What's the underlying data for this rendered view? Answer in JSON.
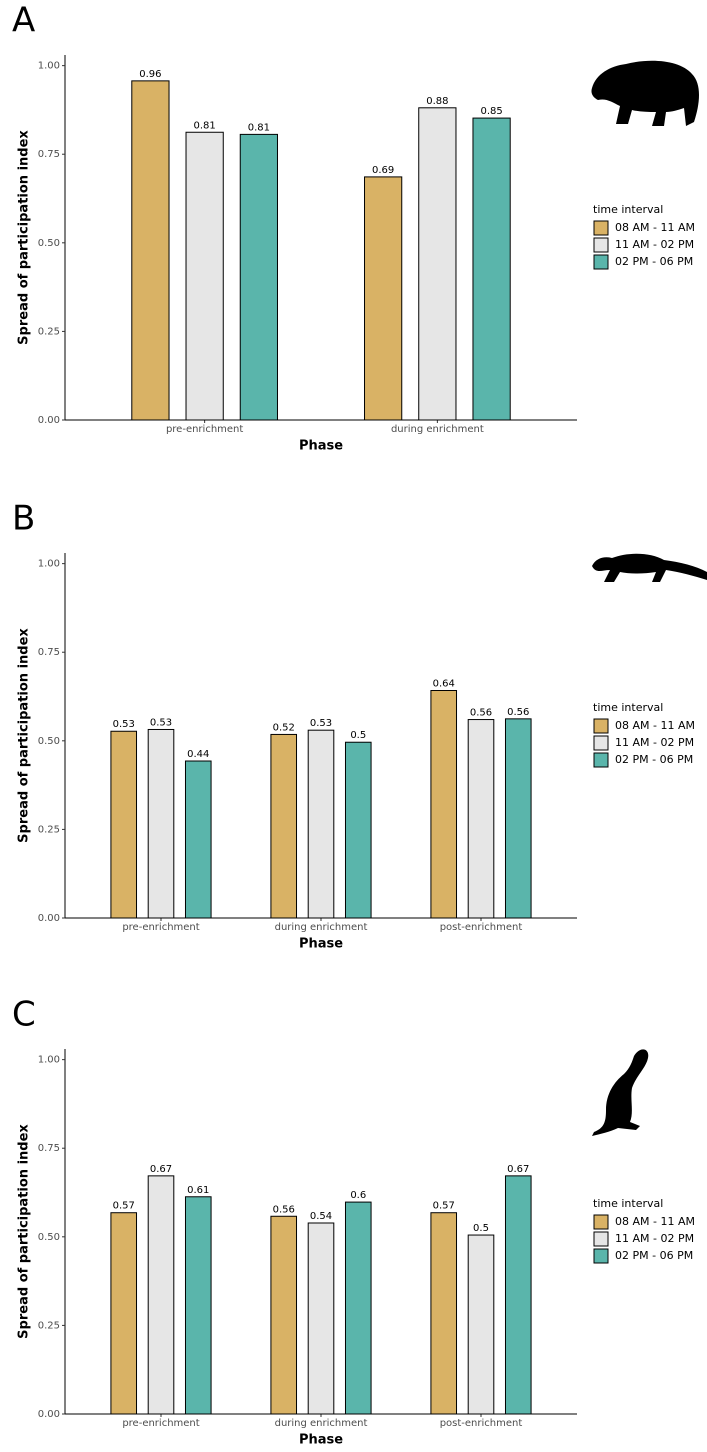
{
  "chart_data": [
    {
      "type": "bar",
      "panel": "A",
      "xlabel": "Phase",
      "ylabel": "Spread of participation index",
      "legend_title": "time interval",
      "categories": [
        "pre-enrichment",
        "during enrichment"
      ],
      "series": [
        {
          "name": "08 AM - 11 AM",
          "color": "#d9b265",
          "values": [
            0.957,
            0.686
          ],
          "value_labels": [
            "0.96",
            "0.69"
          ]
        },
        {
          "name": "11 AM - 02 PM",
          "color": "#e6e6e6",
          "values": [
            0.812,
            0.881
          ],
          "value_labels": [
            "0.81",
            "0.88"
          ]
        },
        {
          "name": "02 PM - 06 PM",
          "color": "#5ab5ab",
          "values": [
            0.806,
            0.852
          ],
          "value_labels": [
            "0.81",
            "0.85"
          ]
        }
      ],
      "ylim": [
        0,
        1.03
      ],
      "yticks": [
        {
          "value": 0,
          "label": "0.00"
        },
        {
          "value": 0.25,
          "label": "0.25"
        },
        {
          "value": 0.5,
          "label": "0.50"
        },
        {
          "value": 0.75,
          "label": "0.75"
        },
        {
          "value": 1,
          "label": "1.00"
        }
      ]
    },
    {
      "type": "bar",
      "panel": "B",
      "xlabel": "Phase",
      "ylabel": "Spread of participation index",
      "legend_title": "time interval",
      "categories": [
        "pre-enrichment",
        "during enrichment",
        "post-enrichment"
      ],
      "series": [
        {
          "name": "08 AM - 11 AM",
          "color": "#d9b265",
          "values": [
            0.527,
            0.518,
            0.642
          ],
          "value_labels": [
            "0.53",
            "0.52",
            "0.64"
          ]
        },
        {
          "name": "11 AM - 02 PM",
          "color": "#e6e6e6",
          "values": [
            0.532,
            0.53,
            0.56
          ],
          "value_labels": [
            "0.53",
            "0.53",
            "0.56"
          ]
        },
        {
          "name": "02 PM - 06 PM",
          "color": "#5ab5ab",
          "values": [
            0.443,
            0.496,
            0.562
          ],
          "value_labels": [
            "0.44",
            "0.5",
            "0.56"
          ]
        }
      ],
      "ylim": [
        0,
        1.03
      ],
      "yticks": [
        {
          "value": 0,
          "label": "0.00"
        },
        {
          "value": 0.25,
          "label": "0.25"
        },
        {
          "value": 0.5,
          "label": "0.50"
        },
        {
          "value": 0.75,
          "label": "0.75"
        },
        {
          "value": 1,
          "label": "1.00"
        }
      ]
    },
    {
      "type": "bar",
      "panel": "C",
      "xlabel": "Phase",
      "ylabel": "Spread of participation index",
      "legend_title": "time interval",
      "categories": [
        "pre-enrichment",
        "during enrichment",
        "post-enrichment"
      ],
      "series": [
        {
          "name": "08 AM - 11 AM",
          "color": "#d9b265",
          "values": [
            0.568,
            0.558,
            0.568
          ],
          "value_labels": [
            "0.57",
            "0.56",
            "0.57"
          ]
        },
        {
          "name": "11 AM - 02 PM",
          "color": "#e6e6e6",
          "values": [
            0.672,
            0.539,
            0.505
          ],
          "value_labels": [
            "0.67",
            "0.54",
            "0.5"
          ]
        },
        {
          "name": "02 PM - 06 PM",
          "color": "#5ab5ab",
          "values": [
            0.613,
            0.598,
            0.672
          ],
          "value_labels": [
            "0.61",
            "0.6",
            "0.67"
          ]
        }
      ],
      "ylim": [
        0,
        1.03
      ],
      "yticks": [
        {
          "value": 0,
          "label": "0.00"
        },
        {
          "value": 0.25,
          "label": "0.25"
        },
        {
          "value": 0.5,
          "label": "0.50"
        },
        {
          "value": 0.75,
          "label": "0.75"
        },
        {
          "value": 1,
          "label": "1.00"
        }
      ]
    }
  ]
}
